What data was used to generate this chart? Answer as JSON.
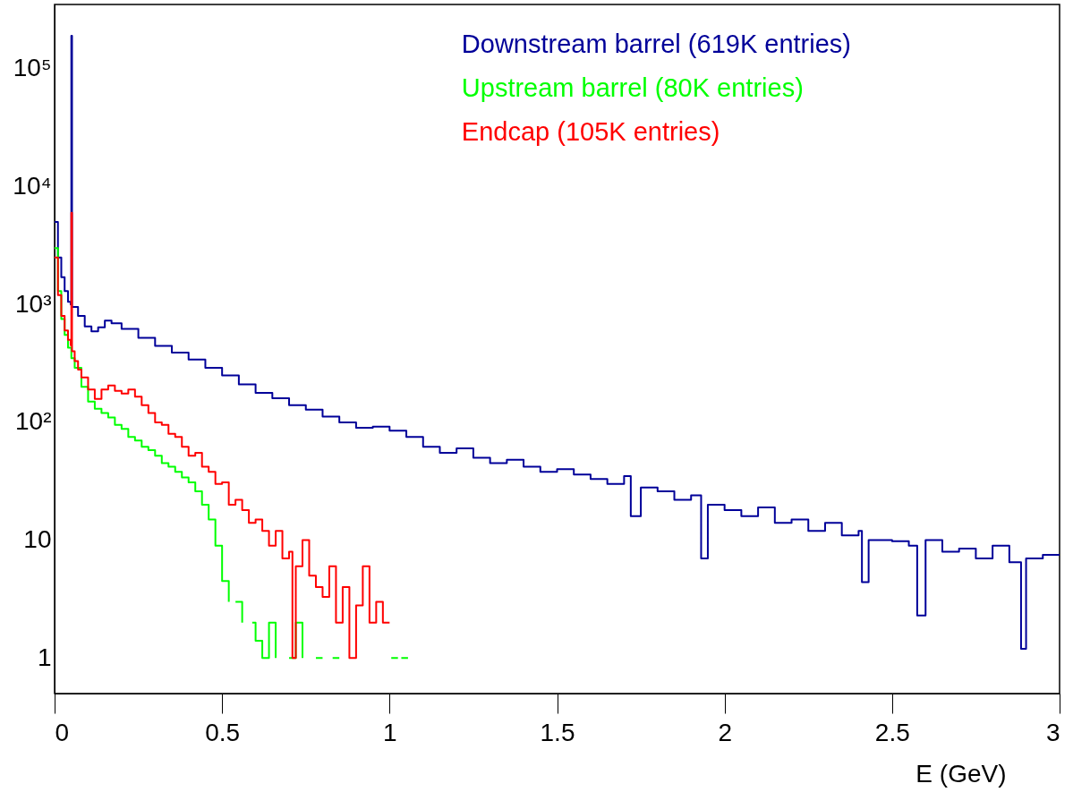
{
  "chart_data": {
    "type": "step",
    "xlabel": "E (GeV)",
    "log": "y",
    "legend": "top right",
    "grid": false,
    "xlim": [
      0,
      3
    ],
    "xticks": [
      0,
      0.5,
      1,
      1.5,
      2,
      2.5,
      3
    ],
    "ylim": [
      0.5,
      350000
    ],
    "yticks": [
      {
        "value": 1,
        "label": "1"
      },
      {
        "value": 10,
        "label": "10"
      },
      {
        "value": 100,
        "label": "10²"
      },
      {
        "value": 1000,
        "label": "10³"
      },
      {
        "value": 10000,
        "label": "10⁴"
      },
      {
        "value": 100000,
        "label": "10⁵"
      }
    ],
    "series": [
      {
        "name": "Downstream barrel (619K entries)",
        "color": "#000099",
        "x": [
          0,
          0.01,
          0.02,
          0.03,
          0.04,
          0.048,
          0.05,
          0.052,
          0.07,
          0.09,
          0.11,
          0.13,
          0.15,
          0.17,
          0.2,
          0.25,
          0.3,
          0.35,
          0.4,
          0.45,
          0.5,
          0.55,
          0.6,
          0.65,
          0.7,
          0.75,
          0.8,
          0.85,
          0.9,
          0.95,
          1.0,
          1.05,
          1.1,
          1.15,
          1.2,
          1.25,
          1.3,
          1.35,
          1.4,
          1.45,
          1.5,
          1.55,
          1.6,
          1.65,
          1.7,
          1.72,
          1.75,
          1.8,
          1.85,
          1.9,
          1.93,
          1.95,
          2.0,
          2.05,
          2.1,
          2.15,
          2.2,
          2.25,
          2.3,
          2.35,
          2.4,
          2.41,
          2.43,
          2.5,
          2.55,
          2.575,
          2.6,
          2.65,
          2.7,
          2.75,
          2.8,
          2.85,
          2.885,
          2.9,
          2.95,
          3.0
        ],
        "values": [
          5000,
          2500,
          1700,
          1300,
          1050,
          1000,
          190000,
          950,
          800,
          650,
          590,
          640,
          730,
          690,
          620,
          520,
          445,
          390,
          340,
          290,
          250,
          210,
          178,
          160,
          140,
          128,
          112,
          100,
          90,
          92,
          85,
          75,
          62,
          55,
          60,
          50,
          45,
          48,
          42,
          38,
          40,
          36,
          33,
          30,
          35,
          16,
          28,
          26,
          22,
          24,
          7,
          20,
          18,
          16,
          19,
          14,
          15,
          12,
          14,
          11,
          12,
          4.4,
          10,
          9.8,
          9,
          2.3,
          10,
          8,
          8.5,
          7,
          9,
          6.5,
          1.2,
          7,
          7.5,
          7.5
        ]
      },
      {
        "name": "Upstream barrel (80K entries)",
        "color": "#00ff00",
        "x": [
          0,
          0.01,
          0.02,
          0.03,
          0.04,
          0.05,
          0.06,
          0.08,
          0.1,
          0.12,
          0.14,
          0.16,
          0.18,
          0.2,
          0.22,
          0.24,
          0.26,
          0.28,
          0.3,
          0.32,
          0.34,
          0.36,
          0.38,
          0.4,
          0.42,
          0.44,
          0.46,
          0.48,
          0.5,
          0.52,
          0.53,
          0.54,
          0.56,
          0.58,
          0.59,
          0.6,
          0.62,
          0.64,
          0.66,
          0.68,
          0.7,
          0.72,
          0.74,
          0.76,
          0.78,
          0.8,
          0.82,
          0.83,
          0.85,
          0.855,
          1.005,
          1.025,
          1.03,
          1.035,
          1.055
        ],
        "values": [
          3000,
          1300,
          750,
          550,
          430,
          350,
          290,
          200,
          150,
          130,
          120,
          110,
          95,
          88,
          75,
          70,
          62,
          58,
          52,
          45,
          42,
          38,
          34,
          31,
          26,
          20,
          15,
          9,
          4.5,
          3,
          null,
          3,
          2,
          null,
          2,
          1.4,
          1,
          2,
          1,
          null,
          1,
          2,
          1,
          null,
          1,
          1,
          null,
          1,
          1,
          null,
          1,
          1,
          null,
          1,
          1
        ]
      },
      {
        "name": "Endcap (105K entries)",
        "color": "#ff0000",
        "x": [
          0,
          0.01,
          0.02,
          0.03,
          0.04,
          0.048,
          0.05,
          0.052,
          0.06,
          0.07,
          0.08,
          0.1,
          0.12,
          0.14,
          0.16,
          0.18,
          0.2,
          0.22,
          0.24,
          0.26,
          0.28,
          0.3,
          0.32,
          0.34,
          0.36,
          0.38,
          0.4,
          0.42,
          0.44,
          0.46,
          0.48,
          0.5,
          0.52,
          0.54,
          0.56,
          0.58,
          0.6,
          0.62,
          0.64,
          0.66,
          0.68,
          0.7,
          0.71,
          0.72,
          0.74,
          0.76,
          0.78,
          0.8,
          0.82,
          0.84,
          0.86,
          0.88,
          0.9,
          0.92,
          0.94,
          0.96,
          0.98,
          1.0
        ],
        "values": [
          2500,
          1200,
          800,
          600,
          500,
          450,
          6000,
          400,
          330,
          280,
          240,
          190,
          158,
          190,
          205,
          185,
          175,
          190,
          165,
          140,
          120,
          100,
          95,
          80,
          75,
          62,
          52,
          55,
          42,
          38,
          30,
          31,
          20,
          22,
          18,
          14,
          15,
          12,
          9,
          12,
          7,
          8,
          1,
          6,
          10,
          5,
          4,
          3.3,
          6,
          2,
          4,
          1,
          2.8,
          6,
          2,
          3,
          2,
          2
        ]
      }
    ]
  }
}
